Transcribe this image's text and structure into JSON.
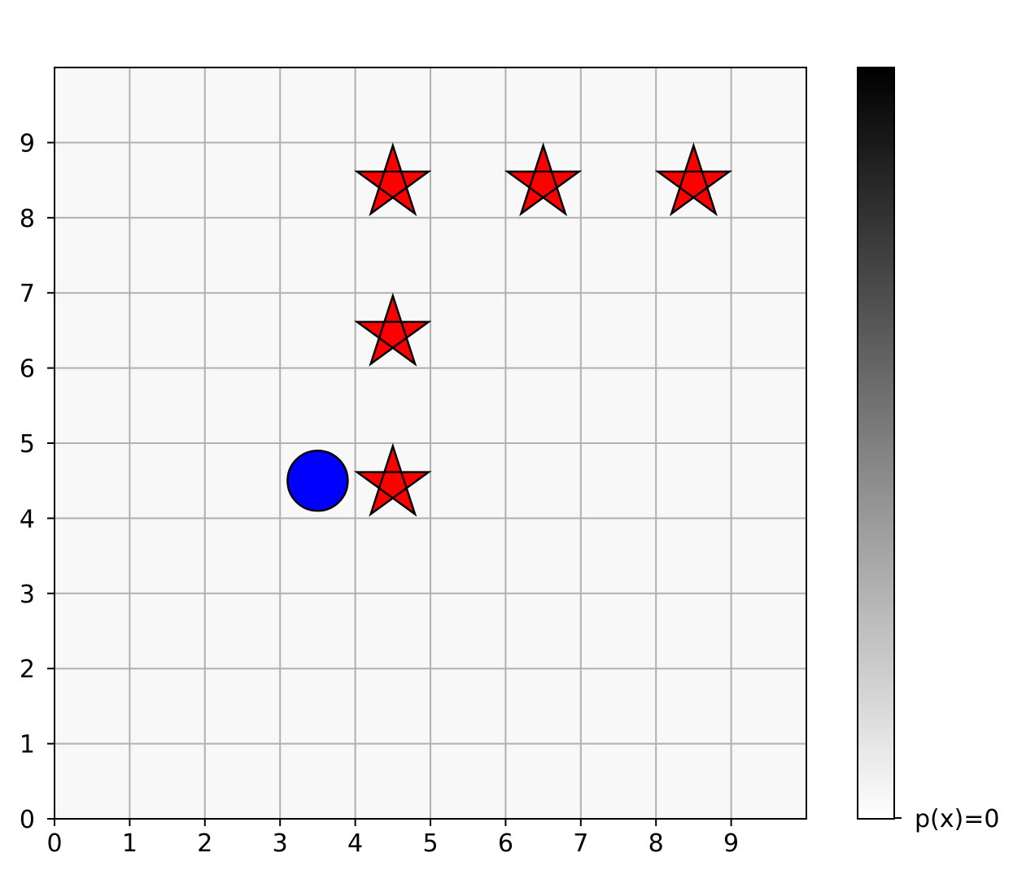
{
  "chart_data": {
    "type": "scatter",
    "title": "",
    "xlabel": "",
    "ylabel": "",
    "xlim": [
      0,
      10
    ],
    "ylim": [
      0,
      10
    ],
    "grid": true,
    "x_ticks": [
      "0",
      "1",
      "2",
      "3",
      "4",
      "5",
      "6",
      "7",
      "8",
      "9"
    ],
    "y_ticks": [
      "0",
      "1",
      "2",
      "3",
      "4",
      "5",
      "6",
      "7",
      "8",
      "9"
    ],
    "series": [
      {
        "marker": "star",
        "color": "#ff0000",
        "points": [
          {
            "x": 4.5,
            "y": 8.5
          },
          {
            "x": 6.5,
            "y": 8.5
          },
          {
            "x": 8.5,
            "y": 8.5
          },
          {
            "x": 4.5,
            "y": 6.5
          },
          {
            "x": 4.5,
            "y": 4.5
          }
        ]
      },
      {
        "marker": "circle",
        "color": "#0000ff",
        "points": [
          {
            "x": 3.5,
            "y": 4.5
          }
        ]
      }
    ],
    "background_color": "#f8f8f8",
    "colorbar": {
      "colormap": "greys",
      "label": "p(x)=0"
    }
  }
}
